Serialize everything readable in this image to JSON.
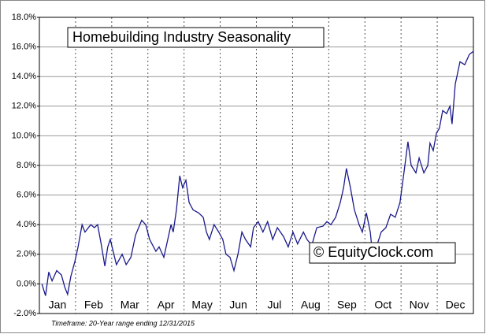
{
  "chart_data": {
    "type": "line",
    "title": "Homebuilding Industry Seasonality",
    "annotations": [
      "© EquityClock.com",
      "Timeframe: 20-Year range ending 12/31/2015"
    ],
    "xlim": [
      0,
      12
    ],
    "xticks": [
      {
        "value": 0.5,
        "label": "Jan"
      },
      {
        "value": 1.5,
        "label": "Feb"
      },
      {
        "value": 2.5,
        "label": "Mar"
      },
      {
        "value": 3.5,
        "label": "Apr"
      },
      {
        "value": 4.5,
        "label": "May"
      },
      {
        "value": 5.5,
        "label": "Jun"
      },
      {
        "value": 6.5,
        "label": "Jul"
      },
      {
        "value": 7.5,
        "label": "Aug"
      },
      {
        "value": 8.5,
        "label": "Sep"
      },
      {
        "value": 9.5,
        "label": "Oct"
      },
      {
        "value": 10.5,
        "label": "Nov"
      },
      {
        "value": 11.5,
        "label": "Dec"
      }
    ],
    "ylim": [
      -2,
      18
    ],
    "yticks": [
      {
        "value": -2,
        "label": "-2.0%"
      },
      {
        "value": 0,
        "label": "0.0%"
      },
      {
        "value": 2,
        "label": "2.0%"
      },
      {
        "value": 4,
        "label": "4.0%"
      },
      {
        "value": 6,
        "label": "6.0%"
      },
      {
        "value": 8,
        "label": "8.0%"
      },
      {
        "value": 10,
        "label": "10.0%"
      },
      {
        "value": 12,
        "label": "12.0%"
      },
      {
        "value": 14,
        "label": "14.0%"
      },
      {
        "value": 16,
        "label": "16.0%"
      },
      {
        "value": 18,
        "label": "18.0%"
      }
    ],
    "grid": true,
    "series": [
      {
        "color": "#1a1a8c",
        "x": [
          0.07,
          0.17,
          0.26,
          0.35,
          0.48,
          0.61,
          0.7,
          0.78,
          0.87,
          0.98,
          1.07,
          1.18,
          1.26,
          1.42,
          1.52,
          1.61,
          1.7,
          1.81,
          1.89,
          1.96,
          2.13,
          2.29,
          2.4,
          2.53,
          2.66,
          2.83,
          2.94,
          3.05,
          3.22,
          3.31,
          3.44,
          3.55,
          3.64,
          3.7,
          3.79,
          3.88,
          3.96,
          4.05,
          4.14,
          4.25,
          4.4,
          4.53,
          4.62,
          4.7,
          4.83,
          4.96,
          5.07,
          5.16,
          5.27,
          5.38,
          5.49,
          5.6,
          5.7,
          5.84,
          5.92,
          6.05,
          6.18,
          6.31,
          6.45,
          6.58,
          6.75,
          6.88,
          7.01,
          7.14,
          7.3,
          7.4,
          7.53,
          7.67,
          7.84,
          7.95,
          8.06,
          8.19,
          8.32,
          8.41,
          8.49,
          8.6,
          8.71,
          8.84,
          8.93,
          9.04,
          9.15,
          9.21,
          9.32,
          9.45,
          9.58,
          9.71,
          9.84,
          9.97,
          10.08,
          10.19,
          10.28,
          10.41,
          10.5,
          10.63,
          10.74,
          10.8,
          10.89,
          10.98,
          11.06,
          11.15,
          11.26,
          11.35,
          11.41,
          11.5,
          11.63,
          11.76,
          11.89,
          12.0
        ],
        "values": [
          0.0,
          -0.8,
          0.8,
          0.2,
          0.9,
          0.6,
          -0.2,
          -0.7,
          0.5,
          1.5,
          2.5,
          4.0,
          3.5,
          4.0,
          3.8,
          4.0,
          2.8,
          1.2,
          2.5,
          3.0,
          1.3,
          2.0,
          1.3,
          1.8,
          3.3,
          4.3,
          4.0,
          3.0,
          2.2,
          2.5,
          1.8,
          3.0,
          4.0,
          3.5,
          5.0,
          7.3,
          6.5,
          7.0,
          5.5,
          5.0,
          4.8,
          4.5,
          3.5,
          3.0,
          4.0,
          3.5,
          3.0,
          2.0,
          1.8,
          0.9,
          2.0,
          3.5,
          3.0,
          2.5,
          3.8,
          4.2,
          3.5,
          4.2,
          3.0,
          3.8,
          3.2,
          2.5,
          3.5,
          2.7,
          3.5,
          3.0,
          2.6,
          3.8,
          3.9,
          4.2,
          4.0,
          4.5,
          5.5,
          6.5,
          7.8,
          6.5,
          5.0,
          4.0,
          3.5,
          4.8,
          3.5,
          2.0,
          2.5,
          3.5,
          3.8,
          4.7,
          4.5,
          5.5,
          7.5,
          9.6,
          8.0,
          7.5,
          8.5,
          7.5,
          8.0,
          9.5,
          9.0,
          10.2,
          10.5,
          11.7,
          11.5,
          12.0,
          10.8,
          13.5,
          15.0,
          14.8,
          15.5,
          15.7
        ]
      }
    ]
  }
}
